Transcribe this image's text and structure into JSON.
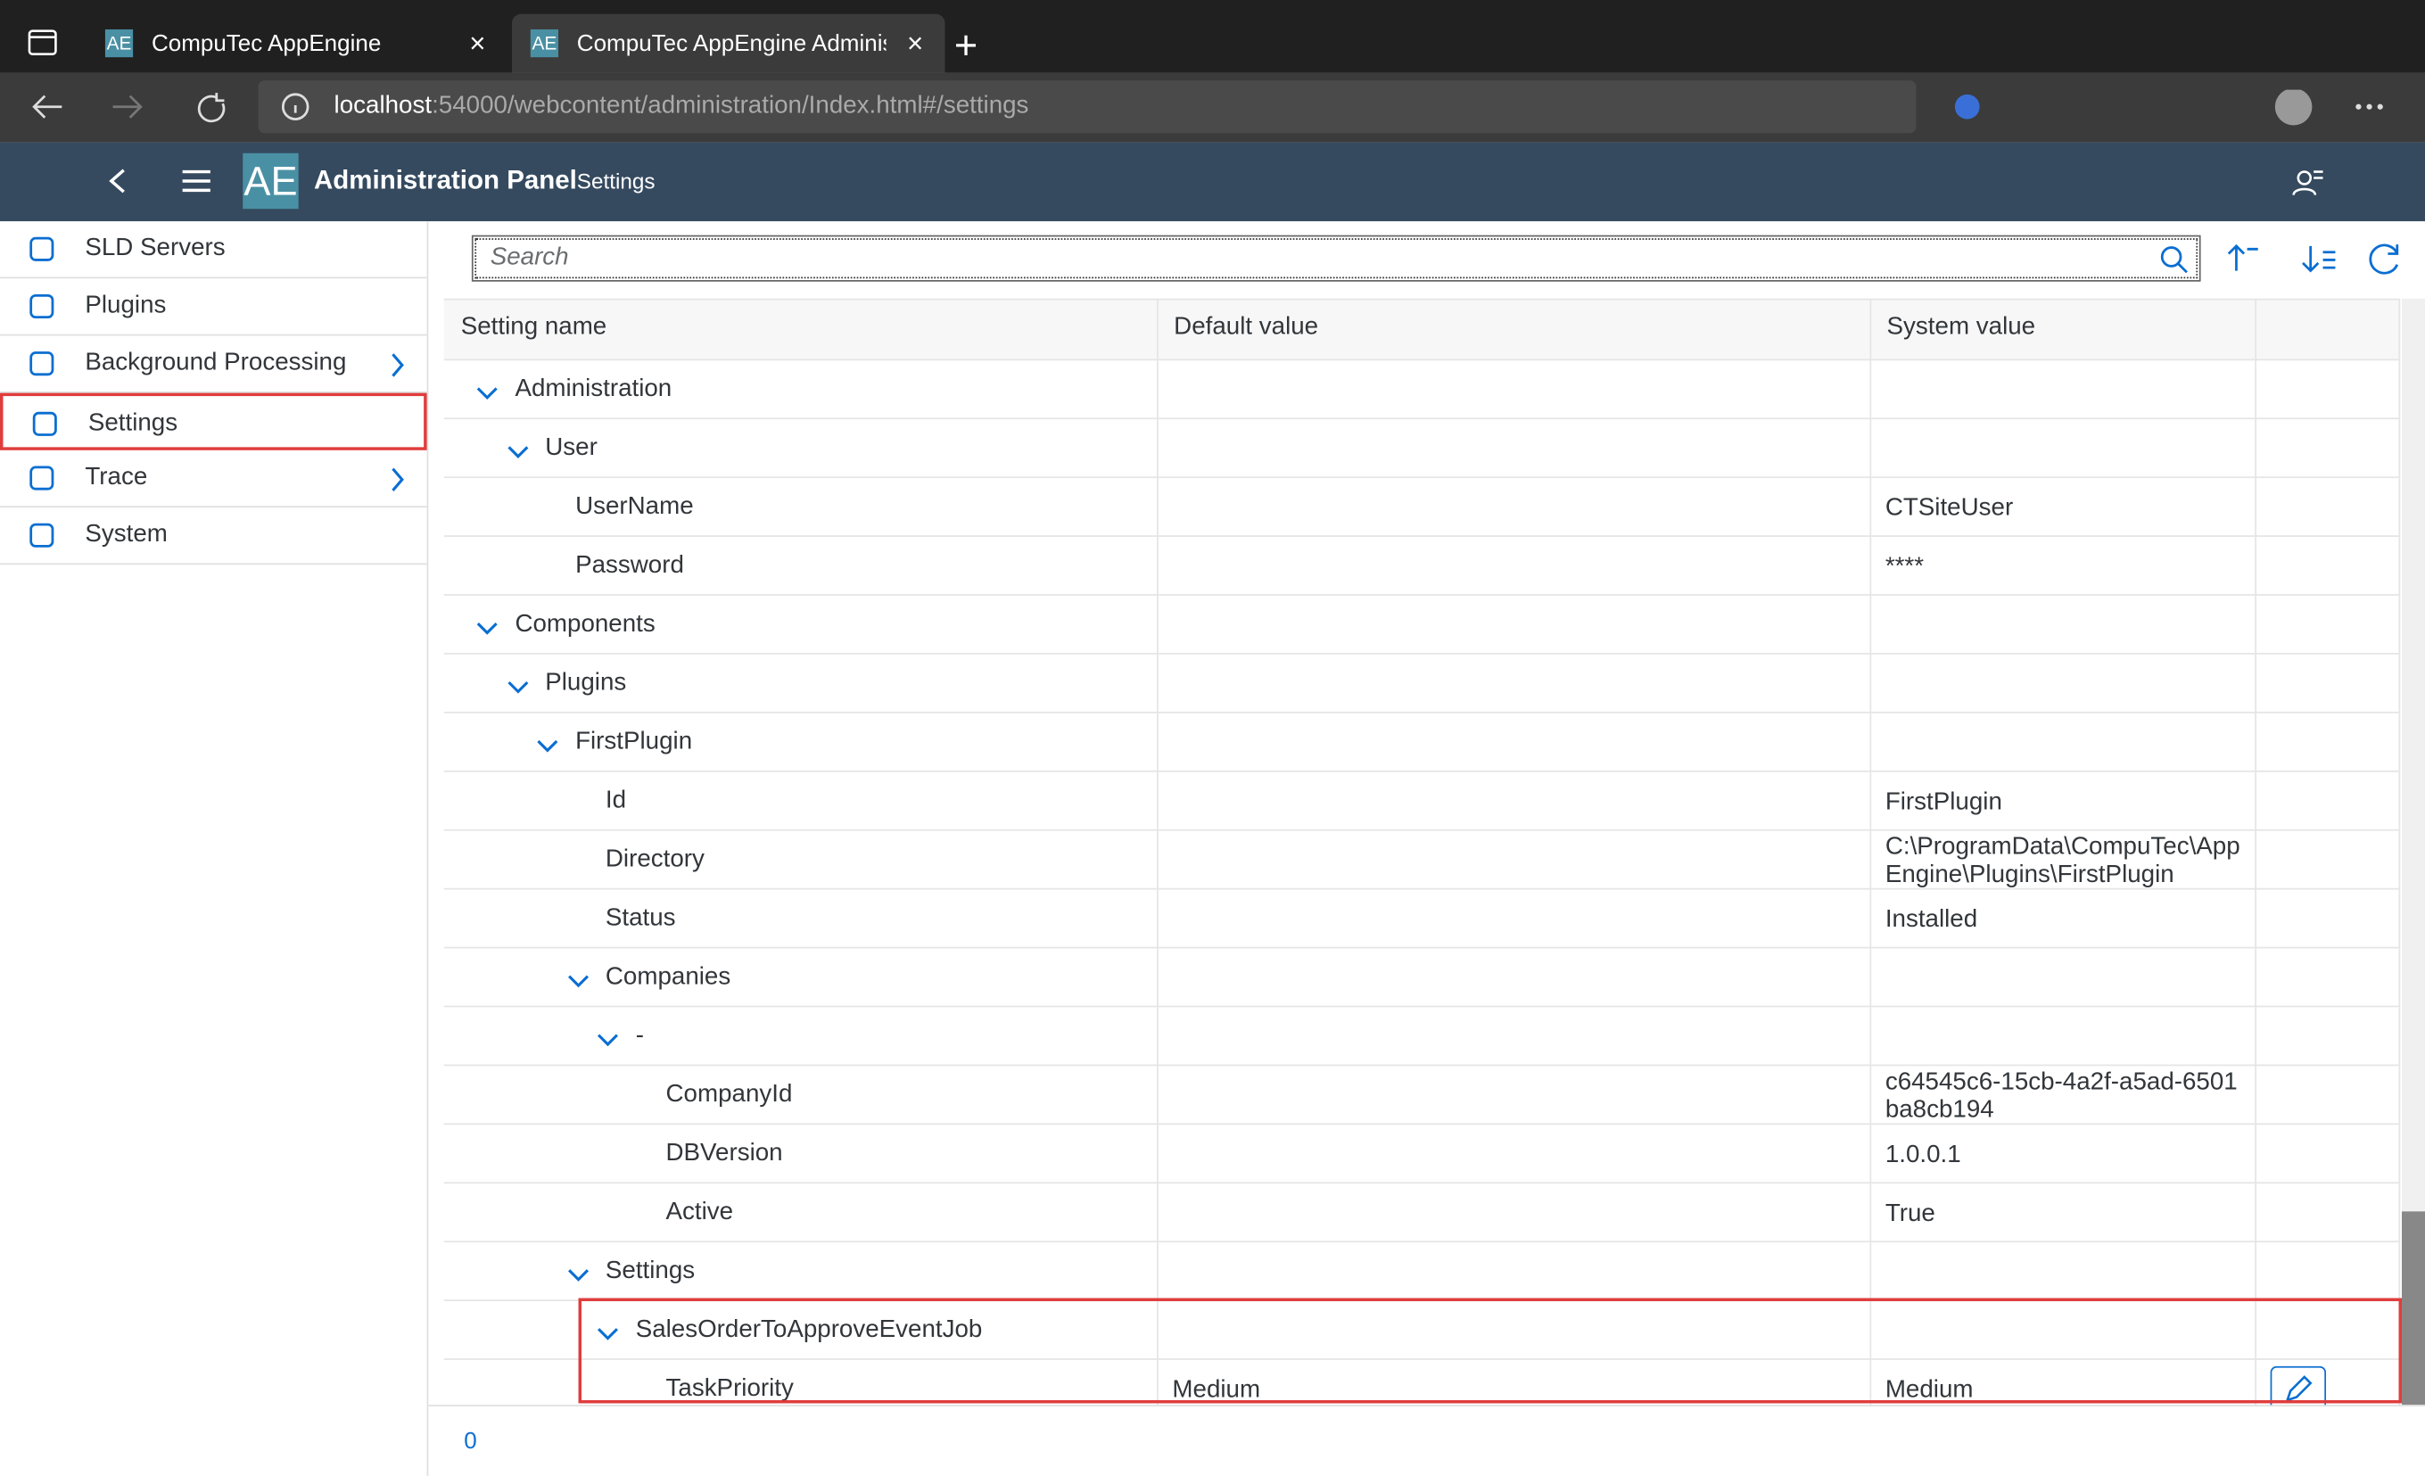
{
  "browser": {
    "tabs": [
      {
        "icon": "AE",
        "title": "CompuTec AppEngine"
      },
      {
        "icon": "AE",
        "title": "CompuTec AppEngine Administr",
        "active": true
      }
    ],
    "url_host": "localhost",
    "url_path": ":54000/webcontent/administration/Index.html#/settings"
  },
  "header": {
    "logo": "AE",
    "title": "Administration Panel",
    "subtitle": "Settings"
  },
  "sidebar": [
    {
      "label": "SLD Servers"
    },
    {
      "label": "Plugins"
    },
    {
      "label": "Background Processing",
      "has_children": true
    },
    {
      "label": "Settings",
      "selected": true
    },
    {
      "label": "Trace",
      "has_children": true
    },
    {
      "label": "System"
    }
  ],
  "toolbar": {
    "search_placeholder": "Search"
  },
  "table": {
    "columns": [
      "Setting name",
      "Default value",
      "System value"
    ],
    "rows": [
      {
        "name": "Administration",
        "children": [
          {
            "name": "User",
            "children": [
              {
                "name": "UserName",
                "system": "CTSiteUser"
              },
              {
                "name": "Password",
                "system": "****"
              }
            ]
          }
        ]
      },
      {
        "name": "Components",
        "children": [
          {
            "name": "Plugins",
            "children": [
              {
                "name": "FirstPlugin",
                "children": [
                  {
                    "name": "Id",
                    "system": "FirstPlugin"
                  },
                  {
                    "name": "Directory",
                    "system": "C:\\ProgramData\\CompuTec\\AppEngine\\Plugins\\FirstPlugin"
                  },
                  {
                    "name": "Status",
                    "system": "Installed"
                  },
                  {
                    "name": "Companies",
                    "children": [
                      {
                        "name": "-",
                        "children": [
                          {
                            "name": "CompanyId",
                            "system": "c64545c6-15cb-4a2f-a5ad-6501ba8cb194"
                          },
                          {
                            "name": "DBVersion",
                            "system": "1.0.0.1"
                          },
                          {
                            "name": "Active",
                            "system": "True"
                          }
                        ]
                      }
                    ]
                  },
                  {
                    "name": "Settings",
                    "children": [
                      {
                        "name": "SalesOrderToApproveEventJob",
                        "highlighted": true,
                        "children": [
                          {
                            "name": "TaskPriority",
                            "default": "Medium",
                            "system": "Medium",
                            "editable": true
                          }
                        ]
                      }
                    ]
                  }
                ]
              }
            ]
          }
        ]
      }
    ]
  },
  "footer": {
    "count": "0"
  }
}
